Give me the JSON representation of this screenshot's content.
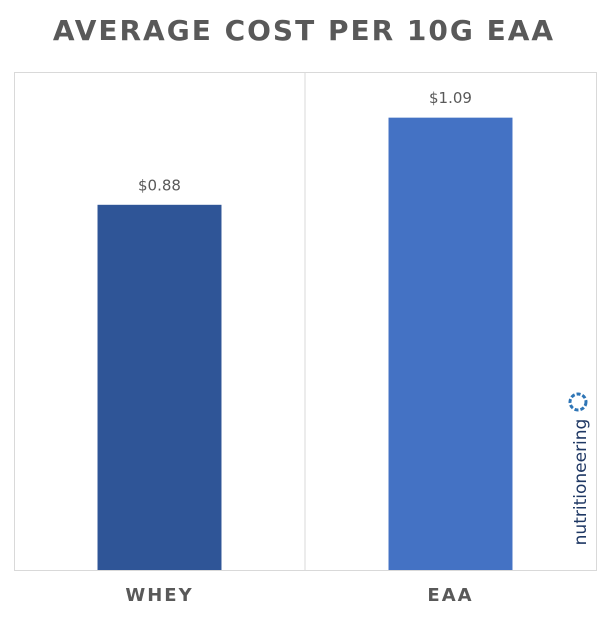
{
  "chart_data": {
    "type": "bar",
    "title": "AVERAGE COST PER 10G EAA",
    "categories": [
      "WHEY",
      "EAA"
    ],
    "values": [
      0.88,
      1.09
    ],
    "value_labels": [
      "$0.88",
      "$1.09"
    ],
    "colors": [
      "#2f5597",
      "#4472c4"
    ],
    "ylim": [
      0,
      1.2
    ],
    "watermark": "nutritioneering"
  }
}
